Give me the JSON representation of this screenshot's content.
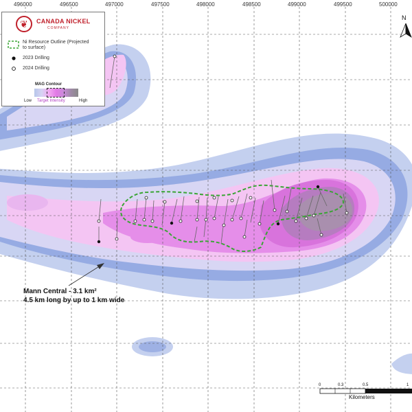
{
  "map": {
    "grid_x_labels": [
      "496000",
      "496500",
      "497000",
      "497500",
      "498000",
      "498500",
      "499000",
      "499500",
      "500000"
    ],
    "colors": {
      "low": "#b7c6ea",
      "mid_low": "#d6d3f3",
      "target_light": "#f2a8f1",
      "target": "#e27ae6",
      "high": "#9f8aa6",
      "outline": "#3aa535"
    }
  },
  "legend": {
    "company_name": "CANADA NICKEL",
    "company_sub": "COMPANY",
    "logo_icon": "maple-leaf-icon",
    "items": [
      {
        "symbol": "dashed-green-outline",
        "label": "Ni Resource Outline (Projected to surface)"
      },
      {
        "symbol": "filled-black-circle",
        "label": "2023 Drilling"
      },
      {
        "symbol": "open-circle",
        "label": "2024 Drilling"
      }
    ],
    "mag_title": "MAG Contour",
    "mag_low": "Low",
    "mag_target": "Target Intensity",
    "mag_high": "High"
  },
  "annotation": {
    "line1": "Mann Central - 3.1 km²",
    "line2": "4.5 km long by up to 1 km wide"
  },
  "north": {
    "label": "N",
    "icon": "north-arrow-icon"
  },
  "scale_bar": {
    "ticks": [
      "0",
      "0.3",
      "0.5",
      "1"
    ],
    "units": "Kilometers"
  }
}
